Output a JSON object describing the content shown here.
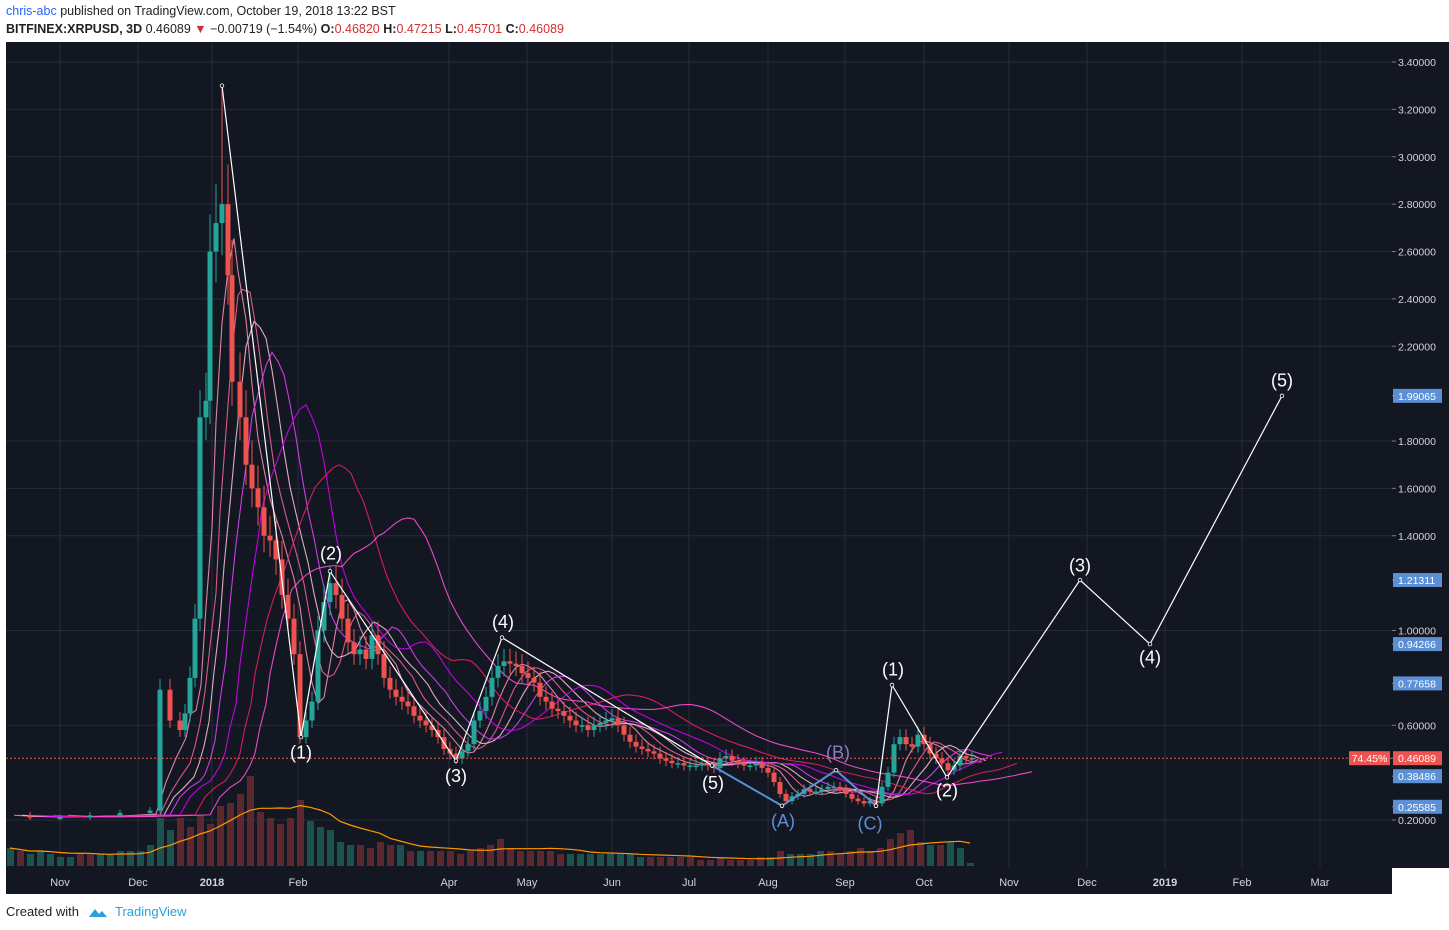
{
  "header": {
    "user": "chris-abc",
    "published": "published on TradingView.com, October 19, 2018 13:22 BST",
    "symbol": "BITFINEX:XRPUSD, 3D",
    "last": "0.46089",
    "down_arrow": "▼",
    "change": "−0.00719 (−1.54%)",
    "o_label": "O:",
    "o": "0.46820",
    "h_label": "H:",
    "h": "0.47215",
    "l_label": "L:",
    "l": "0.45701",
    "c_label": "C:",
    "c": "0.46089"
  },
  "footer": {
    "created_with": "Created with",
    "brand": "TradingView"
  },
  "colors": {
    "bg": "#131722",
    "up": "#26a69a",
    "down": "#ef5350",
    "wave": "#ffffff",
    "corrective": "#5b8fd6",
    "ma_magenta": "#e040fb",
    "ma_pink": "#f48fb1",
    "ma_orange": "#ff9800",
    "price_line": "#ef5350"
  },
  "chart_data": {
    "type": "candlestick",
    "ylim": [
      0.0,
      3.5
    ],
    "y_ticks": [
      "3.40000",
      "3.20000",
      "3.00000",
      "2.80000",
      "2.60000",
      "2.40000",
      "2.20000",
      "1.99065",
      "1.80000",
      "1.60000",
      "1.40000",
      "1.21311",
      "1.00000",
      "0.94266",
      "0.77658",
      "0.60000",
      "0.46089",
      "0.38486",
      "0.25585",
      "0.20000"
    ],
    "y_tick_values": [
      3.4,
      3.2,
      3.0,
      2.8,
      2.6,
      2.4,
      2.2,
      1.99065,
      1.8,
      1.6,
      1.4,
      1.21311,
      1.0,
      0.94266,
      0.77658,
      0.6,
      0.46089,
      0.38486,
      0.25585,
      0.2
    ],
    "highlight_labels": [
      {
        "value": 1.99065,
        "text": "1.99065",
        "color": "#5b8fd6"
      },
      {
        "value": 1.21311,
        "text": "1.21311",
        "color": "#5b8fd6"
      },
      {
        "value": 0.94266,
        "text": "0.94266",
        "color": "#5b8fd6"
      },
      {
        "value": 0.77658,
        "text": "0.77658",
        "color": "#5b8fd6"
      },
      {
        "value": 0.46089,
        "text": "0.46089",
        "color": "#ef5350"
      },
      {
        "value": 0.38486,
        "text": "0.38486",
        "color": "#5b8fd6"
      },
      {
        "value": 0.25585,
        "text": "0.25585",
        "color": "#5b8fd6"
      }
    ],
    "percent_badge": "74.45%",
    "x_ticks": [
      {
        "label": "Nov",
        "pos": 60
      },
      {
        "label": "Dec",
        "pos": 138
      },
      {
        "label": "2018",
        "pos": 212,
        "bold": true
      },
      {
        "label": "Feb",
        "pos": 298
      },
      {
        "label": "Apr",
        "pos": 449
      },
      {
        "label": "May",
        "pos": 527
      },
      {
        "label": "Jun",
        "pos": 612
      },
      {
        "label": "Jul",
        "pos": 689
      },
      {
        "label": "Aug",
        "pos": 768
      },
      {
        "label": "Sep",
        "pos": 845
      },
      {
        "label": "Oct",
        "pos": 924
      },
      {
        "label": "Nov",
        "pos": 1009
      },
      {
        "label": "Dec",
        "pos": 1087
      },
      {
        "label": "2019",
        "pos": 1165,
        "bold": true
      },
      {
        "label": "Feb",
        "pos": 1242
      },
      {
        "label": "Mar",
        "pos": 1320
      }
    ],
    "close_path": [
      [
        8,
        0.22
      ],
      [
        30,
        0.21
      ],
      [
        60,
        0.21
      ],
      [
        90,
        0.22
      ],
      [
        120,
        0.23
      ],
      [
        150,
        0.24
      ],
      [
        160,
        0.75
      ],
      [
        170,
        0.62
      ],
      [
        180,
        0.58
      ],
      [
        185,
        0.65
      ],
      [
        190,
        0.8
      ],
      [
        195,
        1.05
      ],
      [
        200,
        1.9
      ],
      [
        206,
        1.97
      ],
      [
        210,
        2.6
      ],
      [
        216,
        2.72
      ],
      [
        222,
        2.8
      ],
      [
        228,
        2.5
      ],
      [
        232,
        2.05
      ],
      [
        240,
        1.9
      ],
      [
        246,
        1.7
      ],
      [
        252,
        1.6
      ],
      [
        258,
        1.52
      ],
      [
        264,
        1.4
      ],
      [
        270,
        1.38
      ],
      [
        276,
        1.3
      ],
      [
        282,
        1.15
      ],
      [
        288,
        1.05
      ],
      [
        294,
        0.9
      ],
      [
        300,
        0.55
      ],
      [
        306,
        0.62
      ],
      [
        312,
        0.7
      ],
      [
        318,
        1.0
      ],
      [
        324,
        1.12
      ],
      [
        330,
        1.2
      ],
      [
        336,
        1.15
      ],
      [
        342,
        1.05
      ],
      [
        348,
        0.95
      ],
      [
        354,
        0.9
      ],
      [
        360,
        0.92
      ],
      [
        366,
        0.88
      ],
      [
        372,
        0.98
      ],
      [
        378,
        0.9
      ],
      [
        384,
        0.8
      ],
      [
        390,
        0.75
      ],
      [
        396,
        0.72
      ],
      [
        402,
        0.7
      ],
      [
        408,
        0.68
      ],
      [
        414,
        0.64
      ],
      [
        420,
        0.62
      ],
      [
        426,
        0.6
      ],
      [
        432,
        0.58
      ],
      [
        438,
        0.55
      ],
      [
        444,
        0.5
      ],
      [
        450,
        0.48
      ],
      [
        456,
        0.46
      ],
      [
        462,
        0.49
      ],
      [
        468,
        0.52
      ],
      [
        474,
        0.62
      ],
      [
        480,
        0.66
      ],
      [
        486,
        0.72
      ],
      [
        492,
        0.8
      ],
      [
        498,
        0.85
      ],
      [
        504,
        0.87
      ],
      [
        510,
        0.86
      ],
      [
        516,
        0.85
      ],
      [
        522,
        0.82
      ],
      [
        528,
        0.8
      ],
      [
        534,
        0.78
      ],
      [
        540,
        0.72
      ],
      [
        546,
        0.7
      ],
      [
        552,
        0.67
      ],
      [
        558,
        0.66
      ],
      [
        564,
        0.64
      ],
      [
        570,
        0.62
      ],
      [
        576,
        0.6
      ],
      [
        582,
        0.6
      ],
      [
        588,
        0.58
      ],
      [
        594,
        0.6
      ],
      [
        600,
        0.61
      ],
      [
        606,
        0.62
      ],
      [
        612,
        0.63
      ],
      [
        618,
        0.6
      ],
      [
        624,
        0.56
      ],
      [
        630,
        0.53
      ],
      [
        636,
        0.51
      ],
      [
        642,
        0.5
      ],
      [
        648,
        0.49
      ],
      [
        654,
        0.48
      ],
      [
        660,
        0.46
      ],
      [
        666,
        0.45
      ],
      [
        672,
        0.44
      ],
      [
        678,
        0.44
      ],
      [
        684,
        0.43
      ],
      [
        690,
        0.43
      ],
      [
        696,
        0.43
      ],
      [
        702,
        0.44
      ],
      [
        708,
        0.43
      ],
      [
        714,
        0.42
      ],
      [
        720,
        0.46
      ],
      [
        726,
        0.47
      ],
      [
        732,
        0.45
      ],
      [
        738,
        0.44
      ],
      [
        744,
        0.43
      ],
      [
        750,
        0.43
      ],
      [
        756,
        0.44
      ],
      [
        762,
        0.42
      ],
      [
        768,
        0.4
      ],
      [
        774,
        0.36
      ],
      [
        780,
        0.31
      ],
      [
        786,
        0.28
      ],
      [
        792,
        0.3
      ],
      [
        798,
        0.31
      ],
      [
        804,
        0.33
      ],
      [
        810,
        0.32
      ],
      [
        816,
        0.32
      ],
      [
        822,
        0.33
      ],
      [
        828,
        0.34
      ],
      [
        834,
        0.34
      ],
      [
        840,
        0.33
      ],
      [
        846,
        0.31
      ],
      [
        852,
        0.29
      ],
      [
        858,
        0.28
      ],
      [
        864,
        0.27
      ],
      [
        870,
        0.28
      ],
      [
        876,
        0.27
      ],
      [
        882,
        0.34
      ],
      [
        888,
        0.4
      ],
      [
        894,
        0.52
      ],
      [
        900,
        0.55
      ],
      [
        906,
        0.52
      ],
      [
        912,
        0.51
      ],
      [
        918,
        0.56
      ],
      [
        924,
        0.52
      ],
      [
        930,
        0.48
      ],
      [
        936,
        0.46
      ],
      [
        942,
        0.44
      ],
      [
        948,
        0.41
      ],
      [
        954,
        0.43
      ],
      [
        960,
        0.47
      ],
      [
        966,
        0.46
      ],
      [
        972,
        0.461
      ]
    ],
    "volume_bars": [
      [
        10,
        0.06
      ],
      [
        20,
        0.05
      ],
      [
        30,
        0.04
      ],
      [
        40,
        0.05
      ],
      [
        50,
        0.04
      ],
      [
        60,
        0.03
      ],
      [
        70,
        0.03
      ],
      [
        80,
        0.04
      ],
      [
        90,
        0.04
      ],
      [
        100,
        0.04
      ],
      [
        110,
        0.04
      ],
      [
        120,
        0.05
      ],
      [
        130,
        0.05
      ],
      [
        140,
        0.05
      ],
      [
        150,
        0.07
      ],
      [
        160,
        0.16
      ],
      [
        170,
        0.12
      ],
      [
        180,
        0.16
      ],
      [
        190,
        0.13
      ],
      [
        200,
        0.17
      ],
      [
        210,
        0.14
      ],
      [
        220,
        0.2
      ],
      [
        230,
        0.21
      ],
      [
        240,
        0.24
      ],
      [
        250,
        0.3
      ],
      [
        260,
        0.18
      ],
      [
        270,
        0.16
      ],
      [
        280,
        0.14
      ],
      [
        290,
        0.16
      ],
      [
        300,
        0.22
      ],
      [
        310,
        0.15
      ],
      [
        320,
        0.13
      ],
      [
        330,
        0.12
      ],
      [
        340,
        0.08
      ],
      [
        350,
        0.07
      ],
      [
        360,
        0.07
      ],
      [
        370,
        0.06
      ],
      [
        380,
        0.08
      ],
      [
        390,
        0.07
      ],
      [
        400,
        0.07
      ],
      [
        410,
        0.05
      ],
      [
        420,
        0.05
      ],
      [
        430,
        0.05
      ],
      [
        440,
        0.05
      ],
      [
        450,
        0.05
      ],
      [
        460,
        0.04
      ],
      [
        470,
        0.05
      ],
      [
        480,
        0.06
      ],
      [
        490,
        0.07
      ],
      [
        500,
        0.09
      ],
      [
        510,
        0.06
      ],
      [
        520,
        0.05
      ],
      [
        530,
        0.05
      ],
      [
        540,
        0.05
      ],
      [
        550,
        0.05
      ],
      [
        560,
        0.04
      ],
      [
        570,
        0.04
      ],
      [
        580,
        0.04
      ],
      [
        590,
        0.04
      ],
      [
        600,
        0.04
      ],
      [
        610,
        0.04
      ],
      [
        620,
        0.04
      ],
      [
        630,
        0.04
      ],
      [
        640,
        0.03
      ],
      [
        650,
        0.03
      ],
      [
        660,
        0.03
      ],
      [
        670,
        0.03
      ],
      [
        680,
        0.03
      ],
      [
        690,
        0.03
      ],
      [
        700,
        0.02
      ],
      [
        710,
        0.02
      ],
      [
        720,
        0.03
      ],
      [
        730,
        0.02
      ],
      [
        740,
        0.02
      ],
      [
        750,
        0.02
      ],
      [
        760,
        0.03
      ],
      [
        770,
        0.03
      ],
      [
        780,
        0.05
      ],
      [
        790,
        0.04
      ],
      [
        800,
        0.04
      ],
      [
        810,
        0.04
      ],
      [
        820,
        0.05
      ],
      [
        830,
        0.05
      ],
      [
        840,
        0.04
      ],
      [
        850,
        0.05
      ],
      [
        860,
        0.06
      ],
      [
        870,
        0.05
      ],
      [
        880,
        0.06
      ],
      [
        890,
        0.09
      ],
      [
        900,
        0.11
      ],
      [
        910,
        0.12
      ],
      [
        920,
        0.08
      ],
      [
        930,
        0.07
      ],
      [
        940,
        0.07
      ],
      [
        950,
        0.08
      ],
      [
        960,
        0.06
      ],
      [
        970,
        0.01
      ]
    ],
    "wave_primary": [
      [
        222,
        3.3
      ],
      [
        301,
        0.55
      ],
      [
        330,
        1.25
      ],
      [
        456,
        0.45
      ],
      [
        502,
        0.97
      ],
      [
        712,
        0.43
      ]
    ],
    "wave_corrective": [
      [
        712,
        0.43
      ],
      [
        782,
        0.26
      ],
      [
        836,
        0.41
      ],
      [
        876,
        0.26
      ]
    ],
    "wave_projection": [
      [
        876,
        0.26
      ],
      [
        892,
        0.77
      ],
      [
        947,
        0.38
      ],
      [
        1080,
        1.21311
      ],
      [
        1150,
        0.94266
      ],
      [
        1282,
        1.99065
      ]
    ],
    "wave_labels": [
      {
        "text": "(1)",
        "x": 301,
        "y": 0.46,
        "color": "#ffffff"
      },
      {
        "text": "(2)",
        "x": 331,
        "y": 1.3,
        "color": "#ffffff"
      },
      {
        "text": "(3)",
        "x": 456,
        "y": 0.36,
        "color": "#ffffff"
      },
      {
        "text": "(4)",
        "x": 503,
        "y": 1.01,
        "color": "#ffffff"
      },
      {
        "text": "(5)",
        "x": 713,
        "y": 0.33,
        "color": "#ffffff"
      },
      {
        "text": "(A)",
        "x": 783,
        "y": 0.17,
        "color": "#5b8fd6"
      },
      {
        "text": "(B)",
        "x": 838,
        "y": 0.46,
        "color": "#8e7cc3"
      },
      {
        "text": "(C)",
        "x": 870,
        "y": 0.16,
        "color": "#5b8fd6"
      },
      {
        "text": "(1)",
        "x": 893,
        "y": 0.81,
        "color": "#ffffff"
      },
      {
        "text": "(2)",
        "x": 947,
        "y": 0.3,
        "color": "#ffffff"
      },
      {
        "text": "(3)",
        "x": 1080,
        "y": 1.25,
        "color": "#ffffff"
      },
      {
        "text": "(4)",
        "x": 1150,
        "y": 0.86,
        "color": "#ffffff"
      },
      {
        "text": "(5)",
        "x": 1282,
        "y": 2.03,
        "color": "#ffffff"
      }
    ],
    "grid": true
  }
}
